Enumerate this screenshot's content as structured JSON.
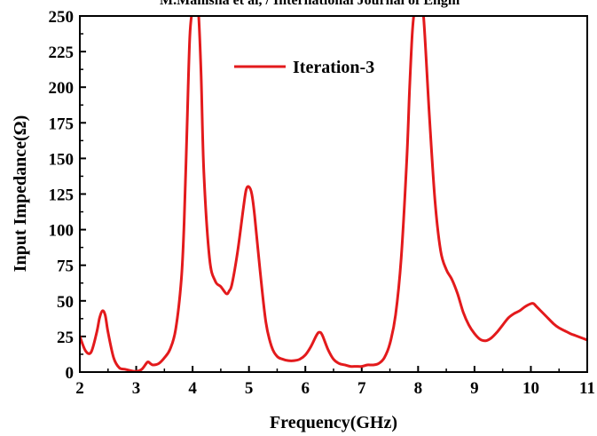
{
  "header": {
    "text": "M.Manisha et al, / International Journal of Engin"
  },
  "chart_data": {
    "type": "line",
    "xlabel": "Frequency(GHz)",
    "ylabel": "Input Impedance(Ω)",
    "xlim": [
      2,
      11
    ],
    "ylim": [
      0,
      250
    ],
    "xticks": [
      2,
      3,
      4,
      5,
      6,
      7,
      8,
      9,
      10,
      11
    ],
    "yticks": [
      0,
      25,
      50,
      75,
      100,
      125,
      150,
      175,
      200,
      225,
      250
    ],
    "grid": false,
    "legend": "top-center",
    "series_color": "#e31a1c",
    "series": [
      {
        "name": "Iteration-3",
        "x": [
          2.0,
          2.1,
          2.2,
          2.3,
          2.35,
          2.4,
          2.45,
          2.5,
          2.6,
          2.7,
          2.8,
          2.9,
          3.0,
          3.1,
          3.2,
          3.25,
          3.3,
          3.4,
          3.5,
          3.6,
          3.7,
          3.8,
          3.85,
          3.9,
          3.95,
          4.0,
          4.05,
          4.1,
          4.15,
          4.2,
          4.3,
          4.4,
          4.5,
          4.6,
          4.65,
          4.7,
          4.8,
          4.9,
          4.95,
          5.0,
          5.05,
          5.1,
          5.2,
          5.3,
          5.4,
          5.5,
          5.6,
          5.7,
          5.8,
          5.9,
          6.0,
          6.1,
          6.2,
          6.25,
          6.3,
          6.4,
          6.5,
          6.6,
          6.7,
          6.8,
          6.9,
          7.0,
          7.1,
          7.2,
          7.3,
          7.4,
          7.5,
          7.6,
          7.7,
          7.8,
          7.85,
          7.9,
          7.95,
          8.0,
          8.05,
          8.1,
          8.2,
          8.3,
          8.4,
          8.5,
          8.6,
          8.7,
          8.8,
          8.9,
          9.0,
          9.1,
          9.2,
          9.3,
          9.4,
          9.5,
          9.6,
          9.7,
          9.8,
          9.9,
          10.0,
          10.05,
          10.1,
          10.2,
          10.3,
          10.4,
          10.5,
          10.6,
          10.7,
          10.8,
          10.9,
          11.0
        ],
        "y": [
          25,
          15,
          14,
          28,
          38,
          43,
          40,
          28,
          10,
          3,
          2,
          1,
          0.5,
          2,
          7,
          6,
          5,
          6,
          10,
          16,
          30,
          65,
          105,
          170,
          235,
          255,
          262,
          255,
          210,
          140,
          80,
          64,
          60,
          55,
          57,
          62,
          85,
          115,
          128,
          130,
          125,
          110,
          70,
          35,
          18,
          11,
          9,
          8,
          8,
          9,
          12,
          18,
          26,
          28,
          26,
          16,
          9,
          6,
          5,
          4,
          4,
          4,
          5,
          5,
          6,
          10,
          20,
          40,
          80,
          150,
          200,
          240,
          258,
          262,
          258,
          248,
          180,
          120,
          85,
          72,
          65,
          55,
          42,
          33,
          27,
          23,
          22,
          24,
          28,
          33,
          38,
          41,
          43,
          46,
          48,
          48,
          46,
          42,
          38,
          34,
          31,
          29,
          27,
          25.5,
          24,
          22.5
        ]
      }
    ]
  }
}
